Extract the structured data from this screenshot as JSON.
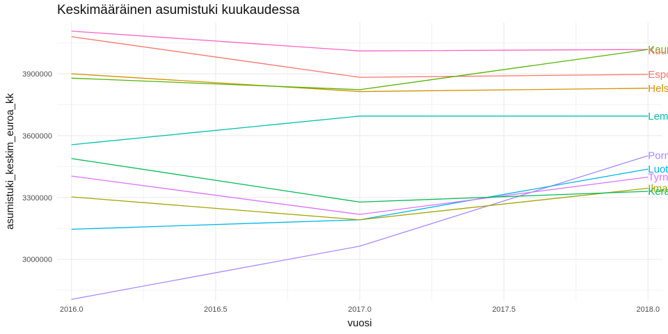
{
  "chart_data": {
    "type": "line",
    "title": "Keskimääräinen asumistuki kuukaudessa",
    "xlabel": "vuosi",
    "ylabel": "asumistuki_keskim_euroa_kk",
    "x": [
      2016,
      2017,
      2018
    ],
    "xlim": [
      2015.95,
      2018.05
    ],
    "ylim": [
      2800000,
      4150000
    ],
    "x_ticks": [
      2016.0,
      2016.5,
      2017.0,
      2017.5,
      2018.0
    ],
    "x_tick_labels": [
      "2016.0",
      "2016.5",
      "2017.0",
      "2017.5",
      "2018.0"
    ],
    "y_ticks": [
      3000000,
      3300000,
      3600000,
      3900000
    ],
    "y_tick_labels": [
      "3000000",
      "3300000",
      "3600000",
      "3900000"
    ],
    "grid": true,
    "legend": "none",
    "series": [
      {
        "name": "Kauniainen",
        "values": [
          4107000,
          4011000,
          4018000
        ],
        "color": "#ff61c3"
      },
      {
        "name": "Kuusamo",
        "values": [
          4080000,
          3883000,
          3897000
        ],
        "color": "#f8766d",
        "label_offset": -32
      },
      {
        "name": "Espoo",
        "values": [
          3900000,
          3814000,
          3830000
        ],
        "color": "#d39200"
      },
      {
        "name": "Helsinki",
        "values": [
          3879000,
          3823000,
          4018000
        ],
        "color": "#53b400"
      },
      {
        "name": "Lemland",
        "values": [
          3556000,
          3695000,
          3695000
        ],
        "color": "#00c1aa"
      },
      {
        "name": "Pornainen",
        "values": [
          2806000,
          3064000,
          3503000
        ],
        "color": "#a58aff"
      },
      {
        "name": "Luoto",
        "values": [
          3146000,
          3192000,
          3438000
        ],
        "color": "#00b6eb"
      },
      {
        "name": "Tyrnävä",
        "values": [
          3404000,
          3218000,
          3399000
        ],
        "color": "#db72fb"
      },
      {
        "name": "Ilmajoki",
        "values": [
          3303000,
          3192000,
          3345000
        ],
        "color": "#a3a500"
      },
      {
        "name": "Kerava",
        "values": [
          3489000,
          3278000,
          3330000
        ],
        "color": "#00bc56"
      }
    ],
    "end_labels": [
      {
        "text": "Kauniainen",
        "y": 4018000,
        "color": "#53b400"
      },
      {
        "text": "Kuusamo",
        "y": 4011000,
        "color": "#f8766d"
      },
      {
        "text": "Espoo",
        "y": 3897000,
        "color": "#f8766d"
      },
      {
        "text": "Helsinki",
        "y": 3830000,
        "color": "#d39200"
      },
      {
        "text": "Lemland",
        "y": 3695000,
        "color": "#00c1aa"
      },
      {
        "text": "Pornainen",
        "y": 3503000,
        "color": "#a58aff"
      },
      {
        "text": "Luoto",
        "y": 3438000,
        "color": "#00b6eb"
      },
      {
        "text": "Tyrnävä",
        "y": 3399000,
        "color": "#db72fb"
      },
      {
        "text": "Ilmajoki",
        "y": 3345000,
        "color": "#a3a500"
      },
      {
        "text": "Kerava",
        "y": 3330000,
        "color": "#00bc56"
      }
    ]
  }
}
